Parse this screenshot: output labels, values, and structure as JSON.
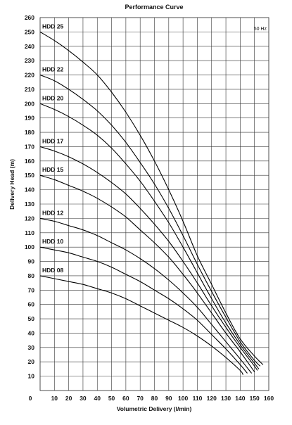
{
  "chart_data": {
    "type": "line",
    "title": "Performance Curve",
    "annotation": "50 Hz",
    "xlabel": "Volumetric Delivery (l/min)",
    "ylabel": "Delivery Head (m)",
    "xlim": [
      0,
      160
    ],
    "ylim": [
      0,
      260
    ],
    "x_ticks": [
      0,
      10,
      20,
      30,
      40,
      50,
      60,
      70,
      80,
      90,
      100,
      110,
      120,
      130,
      140,
      150,
      160
    ],
    "y_ticks": [
      10,
      20,
      30,
      40,
      50,
      60,
      70,
      80,
      90,
      100,
      110,
      120,
      130,
      140,
      150,
      160,
      170,
      180,
      190,
      200,
      210,
      220,
      230,
      240,
      250,
      260
    ],
    "x_origin_label": "0",
    "grid": true,
    "series": [
      {
        "name": "HDD 25",
        "x": [
          0,
          10,
          20,
          30,
          40,
          50,
          60,
          70,
          80,
          90,
          100,
          110,
          120,
          130,
          140,
          150,
          156
        ],
        "y": [
          250,
          244,
          237,
          229,
          220,
          208,
          194,
          178,
          160,
          140,
          118,
          94,
          74,
          54,
          36,
          24,
          18
        ]
      },
      {
        "name": "HDD 22",
        "x": [
          0,
          10,
          20,
          30,
          40,
          50,
          60,
          70,
          80,
          90,
          100,
          110,
          120,
          130,
          140,
          150,
          154
        ],
        "y": [
          220,
          216,
          210,
          203,
          195,
          185,
          173,
          159,
          144,
          127,
          108,
          88,
          69,
          51,
          34,
          21,
          17
        ]
      },
      {
        "name": "HDD 20",
        "x": [
          0,
          10,
          20,
          30,
          40,
          50,
          60,
          70,
          80,
          90,
          100,
          110,
          120,
          130,
          140,
          150,
          153
        ],
        "y": [
          200,
          196,
          191,
          185,
          178,
          169,
          158,
          146,
          132,
          117,
          100,
          82,
          64,
          47,
          32,
          19,
          15
        ]
      },
      {
        "name": "HDD 17",
        "x": [
          0,
          10,
          20,
          30,
          40,
          50,
          60,
          70,
          80,
          90,
          100,
          110,
          120,
          130,
          140,
          150,
          152
        ],
        "y": [
          170,
          167,
          163,
          158,
          152,
          145,
          137,
          127,
          116,
          104,
          90,
          75,
          59,
          44,
          30,
          17,
          14
        ]
      },
      {
        "name": "HDD 15",
        "x": [
          0,
          10,
          20,
          30,
          40,
          50,
          60,
          70,
          80,
          90,
          100,
          110,
          120,
          130,
          140,
          150
        ],
        "y": [
          150,
          147,
          143,
          139,
          134,
          128,
          121,
          112,
          103,
          93,
          81,
          68,
          54,
          40,
          27,
          13
        ]
      },
      {
        "name": "HDD 12",
        "x": [
          0,
          10,
          20,
          30,
          40,
          50,
          60,
          70,
          80,
          90,
          100,
          110,
          120,
          130,
          140,
          148
        ],
        "y": [
          120,
          118,
          115,
          112,
          108,
          103,
          98,
          92,
          85,
          77,
          68,
          58,
          46,
          34,
          22,
          12
        ]
      },
      {
        "name": "HDD 10",
        "x": [
          0,
          10,
          20,
          30,
          40,
          50,
          60,
          70,
          80,
          90,
          100,
          110,
          120,
          130,
          140,
          145
        ],
        "y": [
          100,
          98,
          96,
          93,
          90,
          86,
          81,
          76,
          70,
          64,
          57,
          49,
          39,
          29,
          18,
          12
        ]
      },
      {
        "name": "HDD 08",
        "x": [
          0,
          10,
          20,
          30,
          40,
          50,
          60,
          70,
          80,
          90,
          100,
          110,
          120,
          130,
          140,
          142
        ],
        "y": [
          80,
          78,
          76,
          74,
          71,
          68,
          64,
          59,
          54,
          49,
          44,
          38,
          31,
          23,
          14,
          11
        ]
      }
    ]
  }
}
